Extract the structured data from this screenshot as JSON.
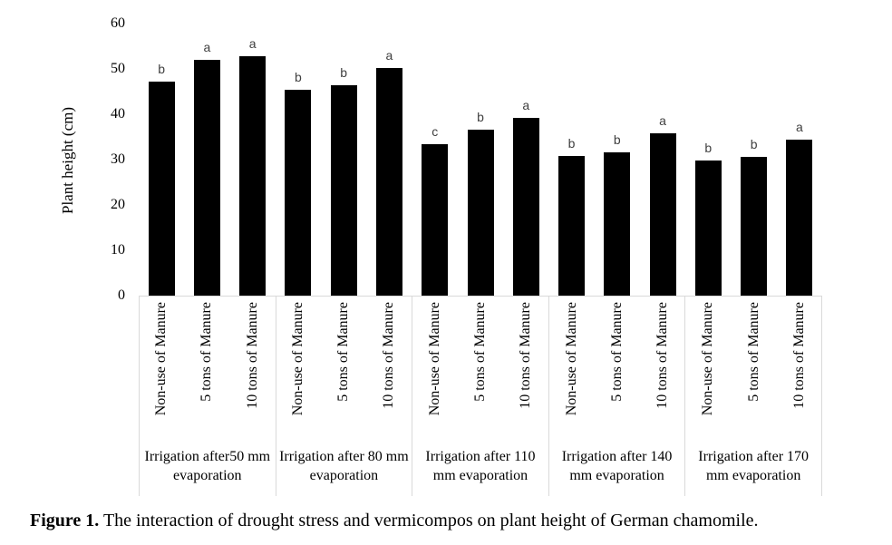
{
  "caption": {
    "prefix": "Figure 1.",
    "text": "The interaction of drought stress and vermicompos on plant height of German chamomile."
  },
  "colors": {
    "bar": "#000000",
    "letter": "#404040",
    "border": "#d9d9d9",
    "text": "#000000"
  },
  "chart_data": {
    "type": "bar",
    "title": "",
    "xlabel": "",
    "ylabel": "Plant height (cm)",
    "ylim": [
      0,
      60
    ],
    "yticks": [
      0,
      10,
      20,
      30,
      40,
      50,
      60
    ],
    "grid": false,
    "legend": "none",
    "bar_color": "#000000",
    "groups": [
      {
        "label": "Irrigation after50 mm evaporation",
        "label_lines": [
          "Irrigation after50 mm",
          "evaporation"
        ],
        "bars": [
          {
            "category": "Non-use of Manure",
            "value": 47.2,
            "letter": "b"
          },
          {
            "category": "5 tons of Manure",
            "value": 52.1,
            "letter": "a"
          },
          {
            "category": "10 tons of Manure",
            "value": 52.8,
            "letter": "a"
          }
        ]
      },
      {
        "label": "Irrigation after 80 mm evaporation",
        "label_lines": [
          "Irrigation after 80 mm",
          "evaporation"
        ],
        "bars": [
          {
            "category": "Non-use of Manure",
            "value": 45.4,
            "letter": "b"
          },
          {
            "category": "5 tons of Manure",
            "value": 46.5,
            "letter": "b"
          },
          {
            "category": "10 tons of Manure",
            "value": 50.3,
            "letter": "a"
          }
        ]
      },
      {
        "label": "Irrigation after 110 mm evaporation",
        "label_lines": [
          "Irrigation after 110",
          "mm evaporation"
        ],
        "bars": [
          {
            "category": "Non-use of Manure",
            "value": 33.4,
            "letter": "c"
          },
          {
            "category": "5 tons of Manure",
            "value": 36.6,
            "letter": "b"
          },
          {
            "category": "10 tons of Manure",
            "value": 39.2,
            "letter": "a"
          }
        ]
      },
      {
        "label": "Irrigation after 140 mm evaporation",
        "label_lines": [
          "Irrigation after 140",
          "mm evaporation"
        ],
        "bars": [
          {
            "category": "Non-use of Manure",
            "value": 30.9,
            "letter": "b"
          },
          {
            "category": "5 tons of Manure",
            "value": 31.6,
            "letter": "b"
          },
          {
            "category": "10 tons of Manure",
            "value": 35.8,
            "letter": "a"
          }
        ]
      },
      {
        "label": "Irrigation after 170 mm evaporation",
        "label_lines": [
          "Irrigation after 170",
          "mm evaporation"
        ],
        "bars": [
          {
            "category": "Non-use of Manure",
            "value": 29.9,
            "letter": "b"
          },
          {
            "category": "5 tons of Manure",
            "value": 30.6,
            "letter": "b"
          },
          {
            "category": "10 tons of Manure",
            "value": 34.4,
            "letter": "a"
          }
        ]
      }
    ]
  }
}
